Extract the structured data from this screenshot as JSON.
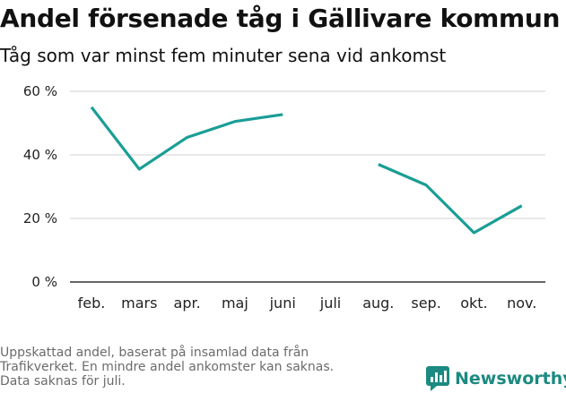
{
  "title": "Andel försenade tåg i Gällivare kommun",
  "subtitle": "Tåg som var minst fem minuter sena vid ankomst",
  "footnote": [
    "Uppskattad andel, baserat på insamlad data från",
    "Trafikverket. En mindre andel ankomster kan saknas.",
    "Data saknas för juli."
  ],
  "brand": {
    "name": "Newsworthy",
    "color": "#1b8a80"
  },
  "colors": {
    "line": "#1a9e96",
    "grid": "#d9d9d9",
    "axis": "#333333"
  },
  "chart_data": {
    "type": "line",
    "categories": [
      "feb.",
      "mars",
      "apr.",
      "maj",
      "juni",
      "juli",
      "aug.",
      "sep.",
      "okt.",
      "nov."
    ],
    "series": [
      {
        "values": [
          55,
          35.5,
          45.5,
          50.5,
          52.7,
          null,
          37,
          30.5,
          15.5,
          24
        ]
      }
    ],
    "y_ticks": [
      0,
      20,
      40,
      60
    ],
    "y_tick_labels": [
      "0 %",
      "20 %",
      "40 %",
      "60 %"
    ],
    "ylim": [
      0,
      60
    ],
    "grid": true,
    "legend": "none"
  }
}
